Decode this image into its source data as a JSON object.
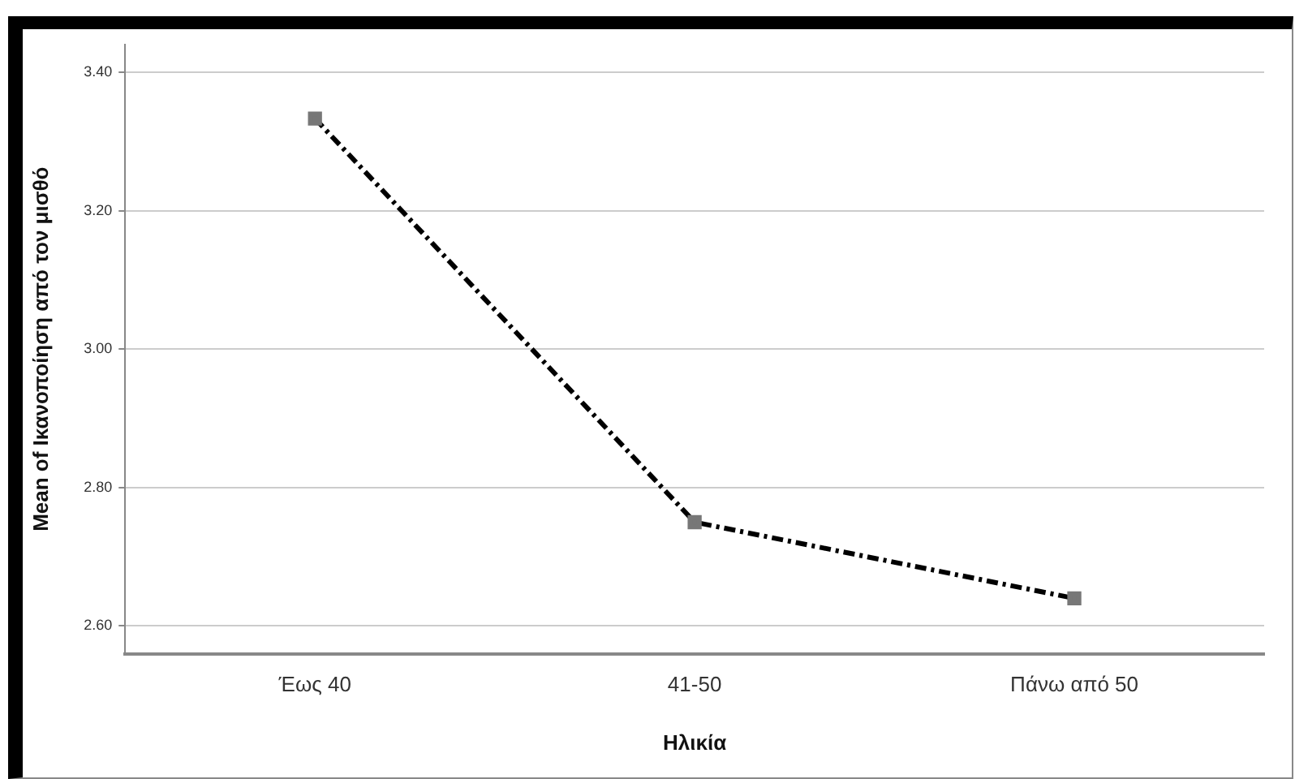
{
  "chart_data": {
    "type": "line",
    "xlabel": "Ηλικία",
    "ylabel": "Mean of Ικανοποίηση από τον μισθό",
    "categories": [
      "Έως 40",
      "41-50",
      "Πάνω από 50"
    ],
    "series": [
      {
        "color": "#000000",
        "values": [
          3.333,
          2.75,
          2.64
        ]
      }
    ],
    "ylim": [
      2.56,
      3.44
    ],
    "yticks": [
      {
        "value": 2.6,
        "label": "2.60"
      },
      {
        "value": 2.8,
        "label": "2.80"
      },
      {
        "value": 3.0,
        "label": "3.00"
      },
      {
        "value": 3.2,
        "label": "3.20"
      },
      {
        "value": 3.4,
        "label": "3.40"
      }
    ],
    "grid": "y",
    "legend": false,
    "marker": "square",
    "line_style": "dashed"
  }
}
